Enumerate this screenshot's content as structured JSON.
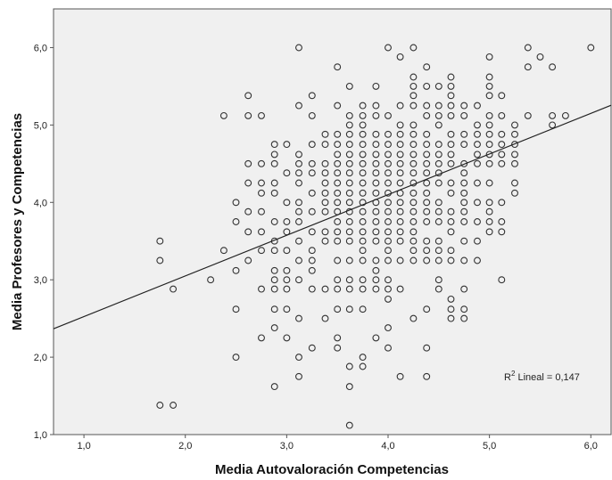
{
  "chart_data": {
    "type": "scatter",
    "title": "",
    "xlabel": "Media Autovaloración Competencias",
    "ylabel": "Media Profesores y Competencias",
    "xlim": [
      0.7,
      6.2
    ],
    "ylim": [
      1.0,
      6.5
    ],
    "x_ticks": [
      1,
      2,
      3,
      4,
      5,
      6
    ],
    "y_ticks": [
      1,
      2,
      3,
      4,
      5,
      6
    ],
    "x_tick_labels": [
      "1,0",
      "2,0",
      "3,0",
      "4,0",
      "5,0",
      "6,0"
    ],
    "y_tick_labels": [
      "1,0",
      "2,0",
      "3,0",
      "4,0",
      "5,0",
      "6,0"
    ],
    "grid": false,
    "plot_background": "#f0f0f0",
    "marker_stroke": "#333333",
    "fit_line": {
      "type": "linear",
      "intercept": 2.0,
      "slope": 0.525,
      "label": "R² Lineal = 0,147",
      "label_main": "R",
      "label_sup": "2",
      "label_rest": " Lineal = 0,147"
    },
    "points": [
      [
        1.75,
        3.5
      ],
      [
        1.75,
        3.25
      ],
      [
        1.75,
        1.38
      ],
      [
        1.88,
        2.88
      ],
      [
        1.88,
        1.38
      ],
      [
        2.25,
        3.0
      ],
      [
        2.38,
        5.12
      ],
      [
        2.38,
        3.38
      ],
      [
        2.5,
        4.0
      ],
      [
        2.5,
        3.75
      ],
      [
        2.5,
        3.12
      ],
      [
        2.5,
        2.62
      ],
      [
        2.5,
        2.0
      ],
      [
        2.62,
        5.38
      ],
      [
        2.62,
        5.12
      ],
      [
        2.62,
        4.5
      ],
      [
        2.62,
        4.25
      ],
      [
        2.62,
        3.88
      ],
      [
        2.62,
        3.62
      ],
      [
        2.62,
        3.25
      ],
      [
        2.75,
        5.12
      ],
      [
        2.75,
        4.5
      ],
      [
        2.75,
        4.25
      ],
      [
        2.75,
        4.12
      ],
      [
        2.75,
        3.88
      ],
      [
        2.75,
        3.62
      ],
      [
        2.75,
        3.38
      ],
      [
        2.75,
        2.88
      ],
      [
        2.75,
        2.25
      ],
      [
        2.88,
        4.75
      ],
      [
        2.88,
        4.62
      ],
      [
        2.88,
        4.5
      ],
      [
        2.88,
        4.25
      ],
      [
        2.88,
        4.12
      ],
      [
        2.88,
        3.75
      ],
      [
        2.88,
        3.5
      ],
      [
        2.88,
        3.38
      ],
      [
        2.88,
        3.12
      ],
      [
        2.88,
        3.0
      ],
      [
        2.88,
        2.88
      ],
      [
        2.88,
        2.62
      ],
      [
        2.88,
        2.38
      ],
      [
        2.88,
        1.62
      ],
      [
        3.0,
        4.75
      ],
      [
        3.0,
        4.38
      ],
      [
        3.0,
        4.0
      ],
      [
        3.0,
        3.75
      ],
      [
        3.0,
        3.62
      ],
      [
        3.0,
        3.38
      ],
      [
        3.0,
        3.12
      ],
      [
        3.0,
        3.0
      ],
      [
        3.0,
        2.88
      ],
      [
        3.0,
        2.62
      ],
      [
        3.0,
        2.25
      ],
      [
        3.12,
        6.0
      ],
      [
        3.12,
        5.25
      ],
      [
        3.12,
        4.62
      ],
      [
        3.12,
        4.5
      ],
      [
        3.12,
        4.38
      ],
      [
        3.12,
        4.25
      ],
      [
        3.12,
        4.0
      ],
      [
        3.12,
        3.88
      ],
      [
        3.12,
        3.75
      ],
      [
        3.12,
        3.5
      ],
      [
        3.12,
        3.25
      ],
      [
        3.12,
        3.0
      ],
      [
        3.12,
        2.5
      ],
      [
        3.12,
        2.0
      ],
      [
        3.12,
        1.75
      ],
      [
        3.25,
        5.38
      ],
      [
        3.25,
        5.12
      ],
      [
        3.25,
        4.75
      ],
      [
        3.25,
        4.5
      ],
      [
        3.25,
        4.38
      ],
      [
        3.25,
        4.12
      ],
      [
        3.25,
        3.88
      ],
      [
        3.25,
        3.62
      ],
      [
        3.25,
        3.38
      ],
      [
        3.25,
        3.25
      ],
      [
        3.25,
        3.12
      ],
      [
        3.25,
        2.88
      ],
      [
        3.25,
        2.12
      ],
      [
        3.38,
        4.88
      ],
      [
        3.38,
        4.75
      ],
      [
        3.38,
        4.5
      ],
      [
        3.38,
        4.38
      ],
      [
        3.38,
        4.25
      ],
      [
        3.38,
        4.12
      ],
      [
        3.38,
        4.0
      ],
      [
        3.38,
        3.88
      ],
      [
        3.38,
        3.62
      ],
      [
        3.38,
        3.5
      ],
      [
        3.38,
        2.88
      ],
      [
        3.38,
        2.5
      ],
      [
        3.5,
        5.75
      ],
      [
        3.5,
        5.25
      ],
      [
        3.5,
        4.88
      ],
      [
        3.5,
        4.75
      ],
      [
        3.5,
        4.62
      ],
      [
        3.5,
        4.5
      ],
      [
        3.5,
        4.38
      ],
      [
        3.5,
        4.25
      ],
      [
        3.5,
        4.12
      ],
      [
        3.5,
        4.0
      ],
      [
        3.5,
        3.88
      ],
      [
        3.5,
        3.75
      ],
      [
        3.5,
        3.62
      ],
      [
        3.5,
        3.5
      ],
      [
        3.5,
        3.25
      ],
      [
        3.5,
        3.0
      ],
      [
        3.5,
        2.88
      ],
      [
        3.5,
        2.62
      ],
      [
        3.5,
        2.25
      ],
      [
        3.5,
        2.12
      ],
      [
        3.62,
        5.5
      ],
      [
        3.62,
        5.12
      ],
      [
        3.62,
        5.0
      ],
      [
        3.62,
        4.88
      ],
      [
        3.62,
        4.75
      ],
      [
        3.62,
        4.62
      ],
      [
        3.62,
        4.5
      ],
      [
        3.62,
        4.38
      ],
      [
        3.62,
        4.25
      ],
      [
        3.62,
        4.12
      ],
      [
        3.62,
        4.0
      ],
      [
        3.62,
        3.88
      ],
      [
        3.62,
        3.75
      ],
      [
        3.62,
        3.62
      ],
      [
        3.62,
        3.5
      ],
      [
        3.62,
        3.25
      ],
      [
        3.62,
        3.0
      ],
      [
        3.62,
        2.88
      ],
      [
        3.62,
        2.62
      ],
      [
        3.62,
        1.88
      ],
      [
        3.62,
        1.62
      ],
      [
        3.62,
        1.12
      ],
      [
        3.75,
        5.25
      ],
      [
        3.75,
        5.12
      ],
      [
        3.75,
        5.0
      ],
      [
        3.75,
        4.88
      ],
      [
        3.75,
        4.75
      ],
      [
        3.75,
        4.62
      ],
      [
        3.75,
        4.5
      ],
      [
        3.75,
        4.38
      ],
      [
        3.75,
        4.25
      ],
      [
        3.75,
        4.12
      ],
      [
        3.75,
        4.0
      ],
      [
        3.75,
        3.88
      ],
      [
        3.75,
        3.75
      ],
      [
        3.75,
        3.62
      ],
      [
        3.75,
        3.5
      ],
      [
        3.75,
        3.38
      ],
      [
        3.75,
        3.25
      ],
      [
        3.75,
        3.0
      ],
      [
        3.75,
        2.88
      ],
      [
        3.75,
        2.62
      ],
      [
        3.75,
        2.0
      ],
      [
        3.75,
        1.88
      ],
      [
        3.88,
        5.5
      ],
      [
        3.88,
        5.25
      ],
      [
        3.88,
        5.12
      ],
      [
        3.88,
        4.88
      ],
      [
        3.88,
        4.75
      ],
      [
        3.88,
        4.62
      ],
      [
        3.88,
        4.5
      ],
      [
        3.88,
        4.38
      ],
      [
        3.88,
        4.25
      ],
      [
        3.88,
        4.12
      ],
      [
        3.88,
        4.0
      ],
      [
        3.88,
        3.88
      ],
      [
        3.88,
        3.75
      ],
      [
        3.88,
        3.62
      ],
      [
        3.88,
        3.5
      ],
      [
        3.88,
        3.25
      ],
      [
        3.88,
        3.12
      ],
      [
        3.88,
        3.0
      ],
      [
        3.88,
        2.88
      ],
      [
        3.88,
        2.25
      ],
      [
        4.0,
        6.0
      ],
      [
        4.0,
        5.12
      ],
      [
        4.0,
        4.88
      ],
      [
        4.0,
        4.75
      ],
      [
        4.0,
        4.62
      ],
      [
        4.0,
        4.5
      ],
      [
        4.0,
        4.38
      ],
      [
        4.0,
        4.25
      ],
      [
        4.0,
        4.12
      ],
      [
        4.0,
        4.0
      ],
      [
        4.0,
        3.88
      ],
      [
        4.0,
        3.75
      ],
      [
        4.0,
        3.62
      ],
      [
        4.0,
        3.5
      ],
      [
        4.0,
        3.38
      ],
      [
        4.0,
        3.25
      ],
      [
        4.0,
        3.0
      ],
      [
        4.0,
        2.88
      ],
      [
        4.0,
        2.75
      ],
      [
        4.0,
        2.38
      ],
      [
        4.0,
        2.12
      ],
      [
        4.12,
        5.88
      ],
      [
        4.12,
        5.25
      ],
      [
        4.12,
        5.0
      ],
      [
        4.12,
        4.88
      ],
      [
        4.12,
        4.75
      ],
      [
        4.12,
        4.62
      ],
      [
        4.12,
        4.5
      ],
      [
        4.12,
        4.38
      ],
      [
        4.12,
        4.25
      ],
      [
        4.12,
        4.12
      ],
      [
        4.12,
        4.0
      ],
      [
        4.12,
        3.88
      ],
      [
        4.12,
        3.75
      ],
      [
        4.12,
        3.62
      ],
      [
        4.12,
        3.5
      ],
      [
        4.12,
        3.25
      ],
      [
        4.12,
        2.88
      ],
      [
        4.12,
        1.75
      ],
      [
        4.25,
        6.0
      ],
      [
        4.25,
        5.62
      ],
      [
        4.25,
        5.5
      ],
      [
        4.25,
        5.38
      ],
      [
        4.25,
        5.25
      ],
      [
        4.25,
        5.0
      ],
      [
        4.25,
        4.88
      ],
      [
        4.25,
        4.75
      ],
      [
        4.25,
        4.62
      ],
      [
        4.25,
        4.5
      ],
      [
        4.25,
        4.38
      ],
      [
        4.25,
        4.25
      ],
      [
        4.25,
        4.12
      ],
      [
        4.25,
        4.0
      ],
      [
        4.25,
        3.88
      ],
      [
        4.25,
        3.75
      ],
      [
        4.25,
        3.62
      ],
      [
        4.25,
        3.5
      ],
      [
        4.25,
        3.38
      ],
      [
        4.25,
        3.25
      ],
      [
        4.25,
        2.5
      ],
      [
        4.38,
        5.75
      ],
      [
        4.38,
        5.5
      ],
      [
        4.38,
        5.25
      ],
      [
        4.38,
        5.12
      ],
      [
        4.38,
        4.88
      ],
      [
        4.38,
        4.75
      ],
      [
        4.38,
        4.62
      ],
      [
        4.38,
        4.5
      ],
      [
        4.38,
        4.38
      ],
      [
        4.38,
        4.25
      ],
      [
        4.38,
        4.12
      ],
      [
        4.38,
        4.0
      ],
      [
        4.38,
        3.88
      ],
      [
        4.38,
        3.75
      ],
      [
        4.38,
        3.5
      ],
      [
        4.38,
        3.38
      ],
      [
        4.38,
        3.25
      ],
      [
        4.38,
        2.62
      ],
      [
        4.38,
        2.12
      ],
      [
        4.38,
        1.75
      ],
      [
        4.5,
        5.5
      ],
      [
        4.5,
        5.25
      ],
      [
        4.5,
        5.12
      ],
      [
        4.5,
        5.0
      ],
      [
        4.5,
        4.75
      ],
      [
        4.5,
        4.62
      ],
      [
        4.5,
        4.5
      ],
      [
        4.5,
        4.38
      ],
      [
        4.5,
        4.25
      ],
      [
        4.5,
        4.0
      ],
      [
        4.5,
        3.88
      ],
      [
        4.5,
        3.75
      ],
      [
        4.5,
        3.5
      ],
      [
        4.5,
        3.38
      ],
      [
        4.5,
        3.25
      ],
      [
        4.5,
        3.0
      ],
      [
        4.5,
        2.88
      ],
      [
        4.62,
        5.62
      ],
      [
        4.62,
        5.5
      ],
      [
        4.62,
        5.38
      ],
      [
        4.62,
        5.25
      ],
      [
        4.62,
        5.12
      ],
      [
        4.62,
        4.88
      ],
      [
        4.62,
        4.75
      ],
      [
        4.62,
        4.62
      ],
      [
        4.62,
        4.5
      ],
      [
        4.62,
        4.25
      ],
      [
        4.62,
        4.12
      ],
      [
        4.62,
        3.88
      ],
      [
        4.62,
        3.75
      ],
      [
        4.62,
        3.62
      ],
      [
        4.62,
        3.38
      ],
      [
        4.62,
        3.25
      ],
      [
        4.62,
        2.75
      ],
      [
        4.62,
        2.62
      ],
      [
        4.62,
        2.5
      ],
      [
        4.75,
        5.25
      ],
      [
        4.75,
        5.12
      ],
      [
        4.75,
        4.88
      ],
      [
        4.75,
        4.75
      ],
      [
        4.75,
        4.5
      ],
      [
        4.75,
        4.38
      ],
      [
        4.75,
        4.25
      ],
      [
        4.75,
        4.12
      ],
      [
        4.75,
        4.0
      ],
      [
        4.75,
        3.88
      ],
      [
        4.75,
        3.75
      ],
      [
        4.75,
        3.5
      ],
      [
        4.75,
        3.25
      ],
      [
        4.75,
        2.88
      ],
      [
        4.75,
        2.62
      ],
      [
        4.75,
        2.5
      ],
      [
        4.88,
        5.25
      ],
      [
        4.88,
        5.0
      ],
      [
        4.88,
        4.88
      ],
      [
        4.88,
        4.75
      ],
      [
        4.88,
        4.62
      ],
      [
        4.88,
        4.5
      ],
      [
        4.88,
        4.25
      ],
      [
        4.88,
        4.0
      ],
      [
        4.88,
        3.75
      ],
      [
        4.88,
        3.5
      ],
      [
        4.88,
        3.25
      ],
      [
        5.0,
        5.88
      ],
      [
        5.0,
        5.62
      ],
      [
        5.0,
        5.5
      ],
      [
        5.0,
        5.38
      ],
      [
        5.0,
        5.12
      ],
      [
        5.0,
        5.0
      ],
      [
        5.0,
        4.88
      ],
      [
        5.0,
        4.75
      ],
      [
        5.0,
        4.62
      ],
      [
        5.0,
        4.5
      ],
      [
        5.0,
        4.25
      ],
      [
        5.0,
        4.0
      ],
      [
        5.0,
        3.88
      ],
      [
        5.0,
        3.75
      ],
      [
        5.0,
        3.62
      ],
      [
        5.12,
        5.38
      ],
      [
        5.12,
        5.12
      ],
      [
        5.12,
        4.88
      ],
      [
        5.12,
        4.75
      ],
      [
        5.12,
        4.62
      ],
      [
        5.12,
        4.5
      ],
      [
        5.12,
        4.0
      ],
      [
        5.12,
        3.75
      ],
      [
        5.12,
        3.62
      ],
      [
        5.12,
        3.0
      ],
      [
        5.25,
        5.0
      ],
      [
        5.25,
        4.88
      ],
      [
        5.25,
        4.75
      ],
      [
        5.25,
        4.62
      ],
      [
        5.25,
        4.5
      ],
      [
        5.25,
        4.25
      ],
      [
        5.25,
        4.12
      ],
      [
        5.38,
        6.0
      ],
      [
        5.38,
        5.75
      ],
      [
        5.38,
        5.12
      ],
      [
        5.5,
        5.88
      ],
      [
        5.62,
        5.75
      ],
      [
        5.62,
        5.12
      ],
      [
        5.62,
        5.0
      ],
      [
        5.75,
        5.12
      ],
      [
        6.0,
        6.0
      ]
    ]
  }
}
